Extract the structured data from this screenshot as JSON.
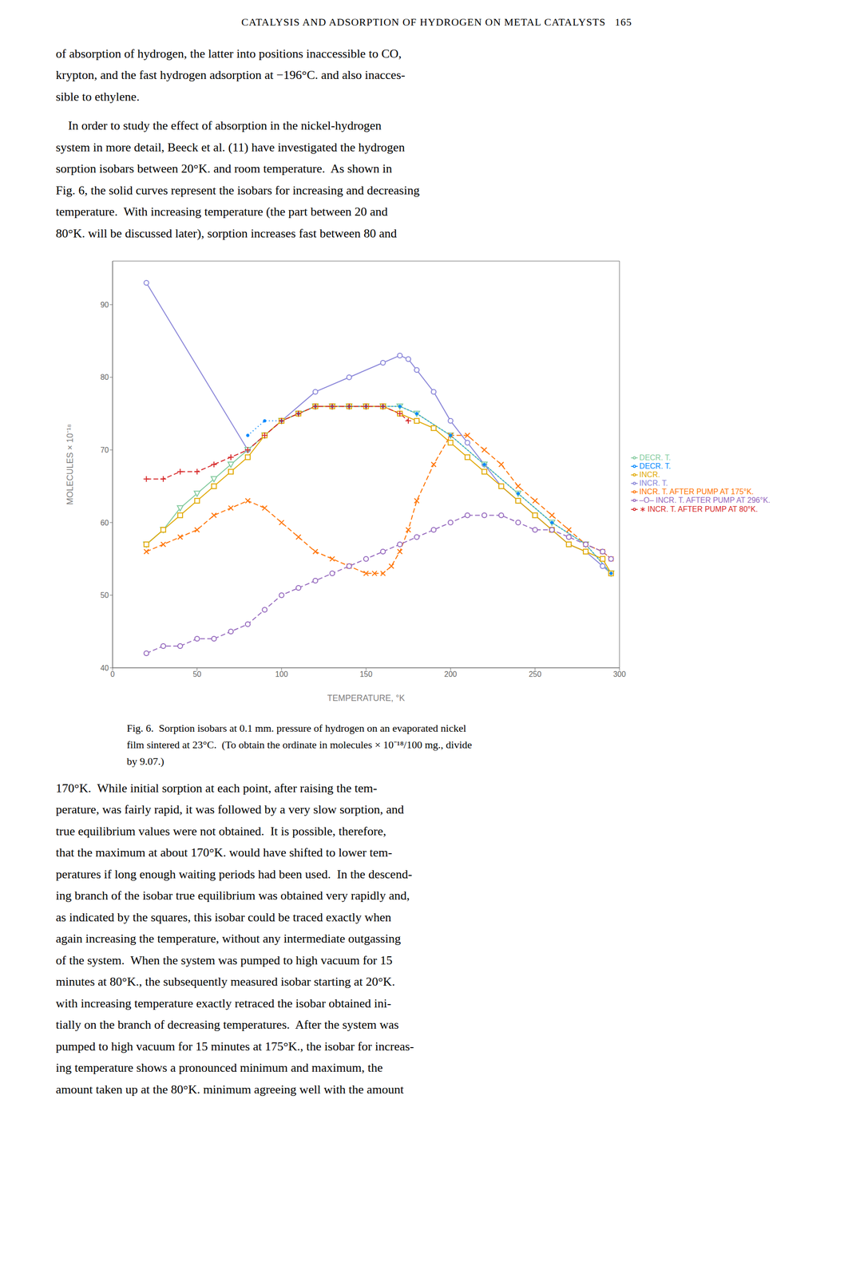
{
  "chart_data": {
    "type": "line",
    "title": "CATALYSIS AND ADSORPTION OF HYDROGEN ON METAL CATALYSTS   165",
    "annotations": [
      [
        "of absorption of hydrogen, the latter into positions inaccessible to CO,",
        "krypton, and the fast hydrogen adsorption at −196°C. and also inacces-",
        "sible to ethylene."
      ],
      [
        "    In order to study the effect of absorption in the nickel-hydrogen",
        "system in more detail, Beeck et al. (11) have investigated the hydrogen",
        "sorption isobars between 20°K. and room temperature.  As shown in",
        "Fig. 6, the solid curves represent the isobars for increasing and decreasing",
        "temperature.  With increasing temperature (the part between 20 and",
        "80°K. will be discussed later), sorption increases fast between 80 and"
      ],
      [
        "Fig. 6.  Sorption isobars at 0.1 mm. pressure of hydrogen on an evaporated nickel",
        "film sintered at 23°C.  (To obtain the ordinate in molecules × 10⁻¹⁸/100 mg., divide",
        "by 9.07.)"
      ],
      [
        "170°K.  While initial sorption at each point, after raising the tem-",
        "perature, was fairly rapid, it was followed by a very slow sorption, and",
        "true equilibrium values were not obtained.  It is possible, therefore,",
        "that the maximum at about 170°K. would have shifted to lower tem-",
        "peratures if long enough waiting periods had been used.  In the descend-",
        "ing branch of the isobar true equilibrium was obtained very rapidly and,",
        "as indicated by the squares, this isobar could be traced exactly when",
        "again increasing the temperature, without any intermediate outgassing",
        "of the system.  When the system was pumped to high vacuum for 15",
        "minutes at 80°K., the subsequently measured isobar starting at 20°K.",
        "with increasing temperature exactly retraced the isobar obtained ini-",
        "tially on the branch of decreasing temperatures.  After the system was",
        "pumped to high vacuum for 15 minutes at 175°K., the isobar for increas-",
        "ing temperature shows a pronounced minimum and maximum, the",
        "amount taken up at the 80°K. minimum agreeing well with the amount"
      ]
    ],
    "x_label": "TEMPERATURE, °K",
    "y_label": "MOLECULES × 10⁻¹⁸",
    "xlim": [
      0,
      300
    ],
    "ylim": [
      40,
      96
    ],
    "xticks": [
      0,
      50,
      100,
      150,
      200,
      250,
      300
    ],
    "yticks": [
      40,
      50,
      60,
      70,
      80,
      90
    ],
    "grid": false,
    "legend": "right",
    "series": [
      {
        "name": "INCR. T.",
        "color": "#8884d8",
        "marker": "circle",
        "line_style": "solid",
        "x": [
          20,
          80,
          90,
          100,
          120,
          140,
          160,
          170,
          175,
          180,
          190,
          200,
          210,
          220,
          230,
          240,
          250,
          260,
          270,
          280,
          290,
          295
        ],
        "values": [
          93,
          70,
          72,
          74,
          78,
          80,
          82,
          83,
          82.5,
          81,
          78,
          74,
          71,
          68,
          65,
          63,
          61,
          59,
          57,
          56,
          54,
          53
        ]
      },
      {
        "name": "DECR. T.",
        "color": "#82ca9d",
        "marker": "triangle-down",
        "line_style": "solid",
        "x": [
          20,
          30,
          40,
          50,
          60,
          70,
          80,
          90,
          100,
          110,
          120,
          130,
          140,
          150,
          160,
          170,
          180,
          200,
          220,
          240,
          260,
          280,
          295
        ],
        "values": [
          57,
          59,
          62,
          64,
          66,
          68,
          70,
          72,
          74,
          75,
          76,
          76,
          76,
          76,
          76,
          76,
          75,
          72,
          68,
          64,
          60,
          57,
          53
        ]
      },
      {
        "name": "INCR.",
        "color": "#e0a800",
        "marker": "square",
        "line_style": "solid",
        "x": [
          20,
          30,
          40,
          50,
          60,
          70,
          80,
          90,
          100,
          110,
          120,
          130,
          140,
          150,
          160,
          170,
          180,
          190,
          200,
          210,
          220,
          230,
          240,
          250,
          260,
          270,
          280,
          290,
          295
        ],
        "values": [
          57,
          59,
          61,
          63,
          65,
          67,
          69,
          72,
          74,
          75,
          76,
          76,
          76,
          76,
          76,
          75,
          74,
          73,
          71,
          69,
          67,
          65,
          63,
          61,
          59,
          57,
          56,
          55,
          53
        ]
      },
      {
        "name": "INCR. T. AFTER PUMP AT 175°K.",
        "color": "#ff7300",
        "marker": "x",
        "line_style": "dashed",
        "x": [
          20,
          30,
          40,
          50,
          60,
          70,
          80,
          90,
          100,
          110,
          120,
          130,
          140,
          150,
          155,
          160,
          165,
          170,
          175,
          180,
          190,
          200,
          210,
          220,
          230,
          240,
          250,
          260,
          270,
          280,
          290,
          295
        ],
        "values": [
          56,
          57,
          58,
          59,
          61,
          62,
          63,
          62,
          60,
          58,
          56,
          55,
          54,
          53,
          53,
          53,
          54,
          56,
          59,
          63,
          68,
          72,
          72,
          70,
          68,
          65,
          63,
          61,
          59,
          57,
          56,
          55
        ]
      },
      {
        "name": "DECR. T.",
        "color": "#0088fe",
        "marker": "dot",
        "line_style": "dotted",
        "x": [
          80,
          90,
          100,
          110,
          120,
          130,
          140,
          150,
          160,
          170,
          180,
          200,
          220,
          240,
          260,
          280,
          295
        ],
        "values": [
          72,
          74,
          74,
          75,
          76,
          76,
          76,
          76,
          76,
          76,
          75,
          72,
          68,
          64,
          60,
          57,
          53
        ]
      },
      {
        "name": "∗ INCR. T. AFTER PUMP AT 80°K.",
        "color": "#d62728",
        "marker": "plus",
        "line_style": "dashed",
        "x": [
          20,
          30,
          40,
          50,
          60,
          70,
          80,
          90,
          100,
          110,
          120,
          130,
          140,
          150,
          160,
          170,
          175
        ],
        "values": [
          66,
          66,
          67,
          67,
          68,
          69,
          70,
          72,
          74,
          75,
          76,
          76,
          76,
          76,
          76,
          75,
          74
        ]
      },
      {
        "name": "–O– INCR. T. AFTER PUMP AT 296°K.",
        "color": "#9467bd",
        "marker": "circle",
        "line_style": "dashed",
        "x": [
          20,
          30,
          40,
          50,
          60,
          70,
          80,
          90,
          100,
          110,
          120,
          130,
          140,
          150,
          160,
          170,
          180,
          190,
          200,
          210,
          220,
          230,
          240,
          250,
          260,
          270,
          280,
          290,
          295
        ],
        "values": [
          42,
          43,
          43,
          44,
          44,
          45,
          46,
          48,
          50,
          51,
          52,
          53,
          54,
          55,
          56,
          57,
          58,
          59,
          60,
          61,
          61,
          61,
          60,
          59,
          59,
          58,
          57,
          56,
          55
        ]
      }
    ]
  }
}
